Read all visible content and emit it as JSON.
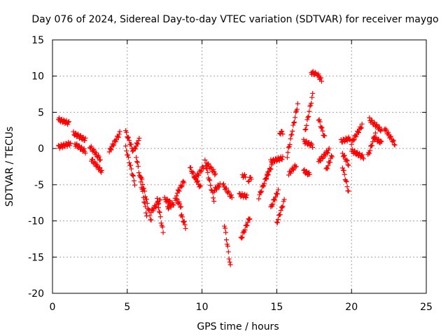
{
  "chart_data": {
    "type": "scatter",
    "title": "Day 076 of 2024, Sidereal Day-to-day VTEC variation (SDTVAR) for receiver maygo",
    "xlabel": "GPS time / hours",
    "ylabel": "SDTVAR / TECUs",
    "xlim": [
      0,
      25
    ],
    "ylim": [
      -20,
      15
    ],
    "xticks": [
      0,
      5,
      10,
      15,
      20,
      25
    ],
    "yticks": [
      -20,
      -15,
      -10,
      -5,
      0,
      5,
      10,
      15
    ],
    "grid": true,
    "marker": "+",
    "color": "#ff0000",
    "tracks": [
      {
        "start": 0.4,
        "end": 1.1,
        "v0": 4.0,
        "v1": 3.5
      },
      {
        "start": 0.4,
        "end": 1.2,
        "v0": 0.2,
        "v1": 0.7
      },
      {
        "start": 1.4,
        "end": 2.2,
        "v0": 2.1,
        "v1": 1.2
      },
      {
        "start": 1.5,
        "end": 2.2,
        "v0": 0.6,
        "v1": -0.4
      },
      {
        "start": 2.5,
        "end": 3.2,
        "v0": 0.3,
        "v1": -1.5
      },
      {
        "start": 2.6,
        "end": 3.3,
        "v0": -1.5,
        "v1": -3.2
      },
      {
        "start": 3.8,
        "end": 4.5,
        "v0": -0.4,
        "v1": 2.1
      },
      {
        "start": 4.9,
        "end": 5.4,
        "v0": 2.3,
        "v1": -0.4
      },
      {
        "start": 4.9,
        "end": 5.5,
        "v0": 0.1,
        "v1": -4.8
      },
      {
        "start": 5.5,
        "end": 5.8,
        "v0": 0.0,
        "v1": 1.2
      },
      {
        "start": 5.6,
        "end": 6.3,
        "v0": -1.1,
        "v1": -9.2
      },
      {
        "start": 5.9,
        "end": 6.6,
        "v0": -3.7,
        "v1": -10.0
      },
      {
        "start": 6.6,
        "end": 7.2,
        "v0": -8.7,
        "v1": -7.2
      },
      {
        "start": 7.0,
        "end": 7.4,
        "v0": -7.0,
        "v1": -11.6
      },
      {
        "start": 7.5,
        "end": 7.9,
        "v0": -7.0,
        "v1": -7.5
      },
      {
        "start": 7.7,
        "end": 8.1,
        "v0": -8.2,
        "v1": -7.6
      },
      {
        "start": 8.2,
        "end": 8.6,
        "v0": -6.8,
        "v1": -8.0
      },
      {
        "start": 8.3,
        "end": 8.8,
        "v0": -6.3,
        "v1": -4.5
      },
      {
        "start": 8.6,
        "end": 8.9,
        "v0": -9.1,
        "v1": -10.8
      },
      {
        "start": 9.2,
        "end": 9.9,
        "v0": -2.7,
        "v1": -5.4
      },
      {
        "start": 9.5,
        "end": 10.1,
        "v0": -4.3,
        "v1": -2.5
      },
      {
        "start": 10.2,
        "end": 10.8,
        "v0": -1.8,
        "v1": -7.1
      },
      {
        "start": 10.3,
        "end": 10.9,
        "v0": -2.0,
        "v1": -3.5
      },
      {
        "start": 10.8,
        "end": 11.2,
        "v0": -5.8,
        "v1": -5.0
      },
      {
        "start": 11.5,
        "end": 11.9,
        "v0": -10.5,
        "v1": -16.3
      },
      {
        "start": 11.4,
        "end": 12.0,
        "v0": -5.0,
        "v1": -6.8
      },
      {
        "start": 12.5,
        "end": 13.0,
        "v0": -6.4,
        "v1": -6.6
      },
      {
        "start": 12.6,
        "end": 13.2,
        "v0": -12.5,
        "v1": -9.5
      },
      {
        "start": 12.7,
        "end": 12.9,
        "v0": -3.7,
        "v1": -3.9
      },
      {
        "start": 13.1,
        "end": 13.3,
        "v0": -4.4,
        "v1": -4.0
      },
      {
        "start": 13.8,
        "end": 14.4,
        "v0": -6.7,
        "v1": -3.5
      },
      {
        "start": 14.3,
        "end": 14.7,
        "v0": -4.0,
        "v1": -2.2
      },
      {
        "start": 14.6,
        "end": 15.1,
        "v0": -8.2,
        "v1": -5.8
      },
      {
        "start": 14.6,
        "end": 15.4,
        "v0": -1.8,
        "v1": -1.3
      },
      {
        "start": 15.0,
        "end": 15.5,
        "v0": -10.3,
        "v1": -7.2
      },
      {
        "start": 15.2,
        "end": 15.4,
        "v0": 2.2,
        "v1": 2.2
      },
      {
        "start": 15.7,
        "end": 16.4,
        "v0": -1.0,
        "v1": 6.1
      },
      {
        "start": 15.8,
        "end": 16.3,
        "v0": -3.5,
        "v1": -2.3
      },
      {
        "start": 16.8,
        "end": 17.2,
        "v0": -3.1,
        "v1": -3.6
      },
      {
        "start": 16.8,
        "end": 17.4,
        "v0": 1.0,
        "v1": 0.4
      },
      {
        "start": 16.9,
        "end": 17.4,
        "v0": 2.4,
        "v1": 7.4
      },
      {
        "start": 17.3,
        "end": 17.6,
        "v0": 10.5,
        "v1": 10.3
      },
      {
        "start": 17.7,
        "end": 18.0,
        "v0": 10.3,
        "v1": 9.4
      },
      {
        "start": 17.8,
        "end": 18.2,
        "v0": 4.1,
        "v1": 1.5
      },
      {
        "start": 17.8,
        "end": 18.5,
        "v0": -1.8,
        "v1": -0.2
      },
      {
        "start": 18.3,
        "end": 18.7,
        "v0": -3.0,
        "v1": -1.0
      },
      {
        "start": 19.3,
        "end": 19.9,
        "v0": 1.0,
        "v1": 1.4
      },
      {
        "start": 19.4,
        "end": 19.8,
        "v0": -0.7,
        "v1": -2.2
      },
      {
        "start": 19.4,
        "end": 19.8,
        "v0": -2.5,
        "v1": -6.0
      },
      {
        "start": 20.0,
        "end": 20.7,
        "v0": 0.8,
        "v1": 3.2
      },
      {
        "start": 20.0,
        "end": 20.8,
        "v0": -0.3,
        "v1": -1.2
      },
      {
        "start": 21.1,
        "end": 21.6,
        "v0": -1.0,
        "v1": 2.0
      },
      {
        "start": 21.2,
        "end": 22.0,
        "v0": 4.0,
        "v1": 2.5
      },
      {
        "start": 21.5,
        "end": 22.0,
        "v0": 1.5,
        "v1": 0.8
      },
      {
        "start": 22.2,
        "end": 22.9,
        "v0": 2.8,
        "v1": 0.6
      }
    ]
  }
}
